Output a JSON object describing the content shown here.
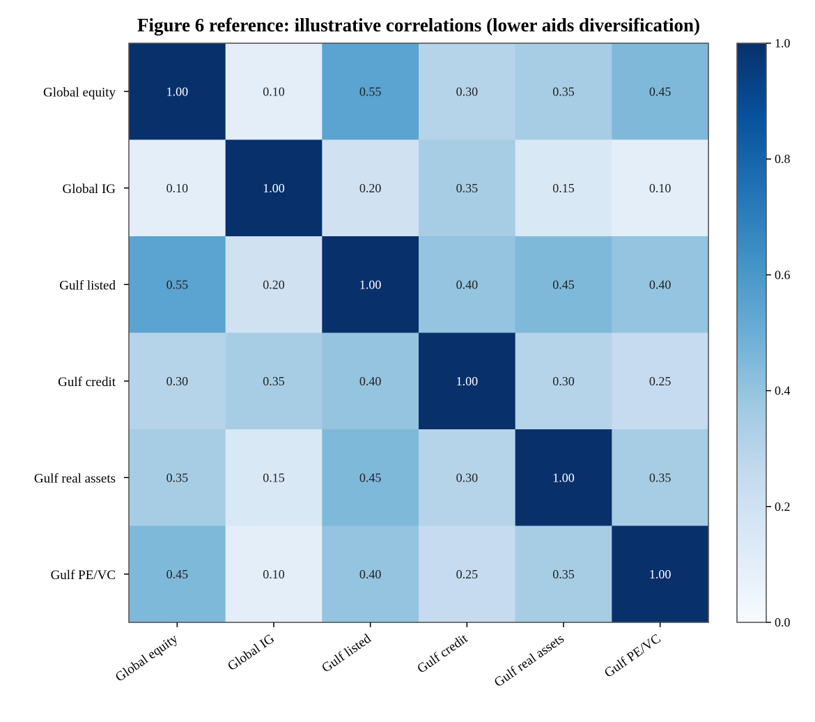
{
  "chart_data": {
    "type": "heatmap",
    "title": "Figure 6 reference: illustrative correlations (lower aids diversification)",
    "xlabel": "",
    "ylabel": "",
    "row_labels": [
      "Global equity",
      "Global IG",
      "Gulf listed",
      "Gulf credit",
      "Gulf real assets",
      "Gulf PE/VC"
    ],
    "col_labels": [
      "Global equity",
      "Global IG",
      "Gulf listed",
      "Gulf credit",
      "Gulf real assets",
      "Gulf PE/VC"
    ],
    "values": [
      [
        1.0,
        0.1,
        0.55,
        0.3,
        0.35,
        0.45
      ],
      [
        0.1,
        1.0,
        0.2,
        0.35,
        0.15,
        0.1
      ],
      [
        0.55,
        0.2,
        1.0,
        0.4,
        0.45,
        0.4
      ],
      [
        0.3,
        0.35,
        0.4,
        1.0,
        0.3,
        0.25
      ],
      [
        0.35,
        0.15,
        0.45,
        0.3,
        1.0,
        0.35
      ],
      [
        0.45,
        0.1,
        0.4,
        0.25,
        0.35,
        1.0
      ]
    ],
    "cell_labels": [
      [
        "1.00",
        "0.10",
        "0.55",
        "0.30",
        "0.35",
        "0.45"
      ],
      [
        "0.10",
        "1.00",
        "0.20",
        "0.35",
        "0.15",
        "0.10"
      ],
      [
        "0.55",
        "0.20",
        "1.00",
        "0.40",
        "0.45",
        "0.40"
      ],
      [
        "0.30",
        "0.35",
        "0.40",
        "1.00",
        "0.30",
        "0.25"
      ],
      [
        "0.35",
        "0.15",
        "0.45",
        "0.30",
        "1.00",
        "0.35"
      ],
      [
        "0.45",
        "0.10",
        "0.40",
        "0.25",
        "0.35",
        "1.00"
      ]
    ],
    "colormap": "Blues",
    "vmin": 0.0,
    "vmax": 1.0,
    "colorbar": {
      "ticks": [
        0.0,
        0.2,
        0.4,
        0.6,
        0.8,
        1.0
      ],
      "tick_labels": [
        "0.0",
        "0.2",
        "0.4",
        "0.6",
        "0.8",
        "1.0"
      ]
    },
    "text_colors": {
      "light": "#ffffff",
      "dark": "#222222"
    },
    "frame_color": "#555555",
    "grid": false
  }
}
